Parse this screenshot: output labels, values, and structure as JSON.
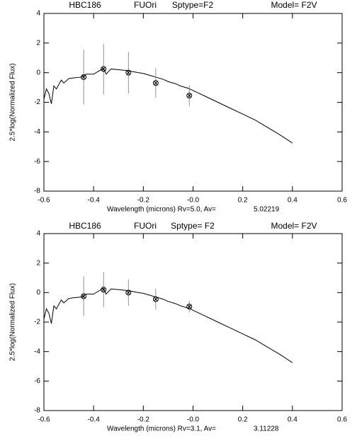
{
  "chart_data": [
    {
      "type": "line",
      "color": "#000000",
      "title": [
        "HBC186",
        "FUOri",
        "Sptype=F2",
        "Model= F2V"
      ],
      "xlabel": "Wavelength (microns) Rv=5.0, Av=",
      "av": 5.02219,
      "ylabel": "2.5*log(Normalized Flux)",
      "xlim": [
        -0.6,
        0.6
      ],
      "xticks": [
        -0.6,
        -0.4,
        -0.2,
        {
          "value": 0,
          "label": "-0.0"
        },
        0.2,
        0.4,
        0.6
      ],
      "ylim": [
        -8,
        4
      ],
      "yticks": [
        -8,
        -6,
        -4,
        -2,
        0,
        2,
        4
      ],
      "line": {
        "x": [
          -0.6,
          -0.59,
          -0.58,
          -0.57,
          -0.56,
          -0.55,
          -0.53,
          -0.52,
          -0.5,
          -0.48,
          -0.45,
          -0.43,
          -0.4,
          -0.38,
          -0.36,
          -0.35,
          -0.33,
          -0.3,
          -0.27,
          -0.25,
          -0.22,
          -0.2,
          -0.17,
          -0.15,
          -0.12,
          -0.1,
          -0.07,
          -0.05,
          -0.02,
          0.0,
          0.05,
          0.1,
          0.15,
          0.2,
          0.25,
          0.3,
          0.35,
          0.4
        ],
        "y": [
          -1.8,
          -1.1,
          -1.4,
          -2.1,
          -0.9,
          -1.1,
          -0.5,
          -0.7,
          -0.4,
          -0.35,
          -0.3,
          -0.1,
          -0.1,
          0.1,
          0.3,
          -0.1,
          0.25,
          0.2,
          0.15,
          0.1,
          0.0,
          -0.05,
          -0.2,
          -0.3,
          -0.45,
          -0.6,
          -0.75,
          -0.9,
          -1.05,
          -1.2,
          -1.6,
          -2.0,
          -2.4,
          -2.8,
          -3.2,
          -3.7,
          -4.2,
          -4.75
        ]
      },
      "points": {
        "x": [
          -0.44,
          -0.36,
          -0.26,
          -0.15,
          -0.015
        ],
        "y": [
          -0.3,
          0.25,
          0.0,
          -0.7,
          -1.55
        ],
        "err": [
          1.85,
          1.7,
          1.4,
          1.0,
          0.7
        ]
      }
    },
    {
      "type": "line",
      "color": "#000000",
      "title": [
        "HBC186",
        "FUOri",
        "Sptype= F2",
        "Model= F2V"
      ],
      "xlabel": "Wavelength (microns) Rv=3.1,  Av=",
      "av": 3.11228,
      "ylabel": "2.5*log(Normalized Flux)",
      "xlim": [
        -0.6,
        0.6
      ],
      "xticks": [
        -0.6,
        -0.4,
        -0.2,
        {
          "value": 0,
          "label": "-0.0"
        },
        0.2,
        0.4,
        0.6
      ],
      "ylim": [
        -8,
        4
      ],
      "yticks": [
        -8,
        -6,
        -4,
        -2,
        0,
        2,
        4
      ],
      "line": {
        "x": [
          -0.6,
          -0.59,
          -0.58,
          -0.57,
          -0.56,
          -0.55,
          -0.53,
          -0.52,
          -0.5,
          -0.48,
          -0.45,
          -0.43,
          -0.4,
          -0.38,
          -0.36,
          -0.35,
          -0.33,
          -0.3,
          -0.27,
          -0.25,
          -0.22,
          -0.2,
          -0.17,
          -0.15,
          -0.12,
          -0.1,
          -0.07,
          -0.05,
          -0.02,
          0.0,
          0.05,
          0.1,
          0.15,
          0.2,
          0.25,
          0.3,
          0.35,
          0.4
        ],
        "y": [
          -1.8,
          -1.1,
          -1.4,
          -2.1,
          -0.9,
          -1.1,
          -0.5,
          -0.7,
          -0.4,
          -0.35,
          -0.3,
          -0.1,
          -0.1,
          0.1,
          0.3,
          -0.1,
          0.25,
          0.2,
          0.15,
          0.1,
          0.0,
          -0.05,
          -0.2,
          -0.3,
          -0.45,
          -0.6,
          -0.75,
          -0.9,
          -1.05,
          -1.2,
          -1.6,
          -2.0,
          -2.4,
          -2.8,
          -3.2,
          -3.7,
          -4.2,
          -4.75
        ]
      },
      "points": {
        "x": [
          -0.44,
          -0.36,
          -0.26,
          -0.15,
          -0.015
        ],
        "y": [
          -0.25,
          0.2,
          0.0,
          -0.45,
          -0.95
        ],
        "err": [
          1.35,
          1.2,
          0.9,
          0.7,
          0.4
        ]
      }
    }
  ]
}
